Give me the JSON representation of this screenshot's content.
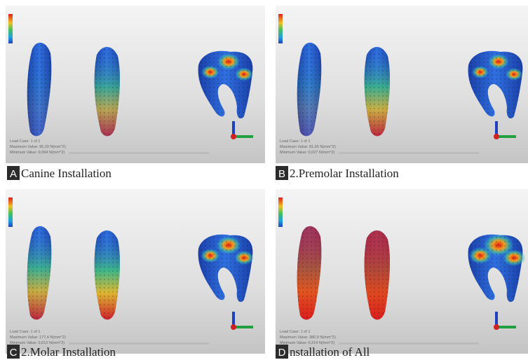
{
  "panels": [
    {
      "label": "A",
      "caption": "Canine Installation",
      "load_case": "Load Case: 1 of 1",
      "max": "Maximum Value: 95,33 N(mm^2)",
      "min": "Minimum Value: 0,094 N(mm^2)"
    },
    {
      "label": "B",
      "caption": "2.Premolar Installation",
      "load_case": "Load Case: 1 of 1",
      "max": "Maximum Value: 81,65 N(mm^2)",
      "min": "Minimum Value: 0,027 N(mm^2)"
    },
    {
      "label": "C",
      "caption": "2.Molar Installation",
      "load_case": "Load Case: 1 of 1",
      "max": "Maximum Value: 177,4 N(mm^2)",
      "min": "Minimum Value: 0,012 N(mm^2)"
    },
    {
      "label": "D",
      "caption": "nstallation of All",
      "load_case": "Load Case: 1 of 1",
      "max": "Maximum Value: 380,9 N(mm^2)",
      "min": "Minimum Value: 0,214 N(mm^2)"
    }
  ]
}
